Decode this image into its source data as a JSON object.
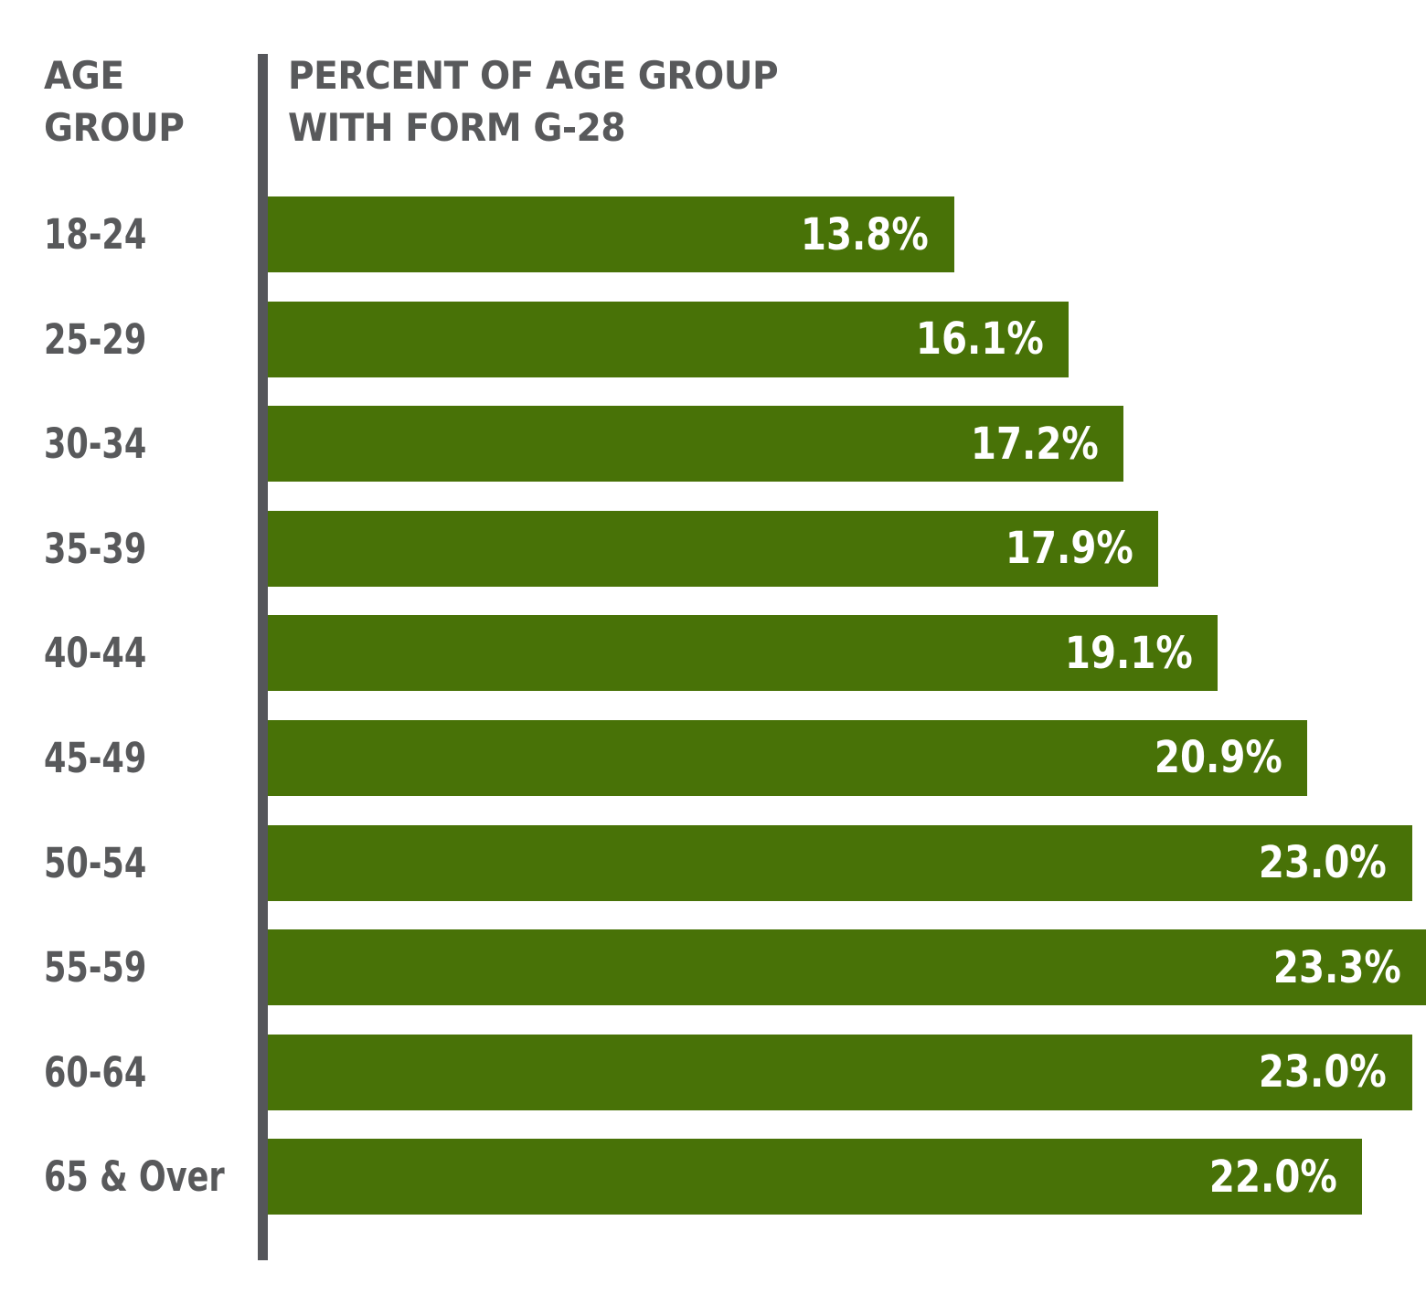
{
  "header": {
    "left_title": "AGE\nGROUP",
    "right_title": "PERCENT OF AGE GROUP\nWITH FORM G-28"
  },
  "colors": {
    "bar_green": "#487207",
    "axis_gray": "#55565A",
    "text_gray": "#58595B",
    "value_text": "#FFFFFF"
  },
  "chart_data": {
    "type": "bar",
    "orientation": "horizontal",
    "title": "PERCENT OF AGE GROUP WITH FORM G-28",
    "category_axis_label": "AGE GROUP",
    "categories": [
      "18-24",
      "25-29",
      "30-34",
      "35-39",
      "40-44",
      "45-49",
      "50-54",
      "55-59",
      "60-64",
      "65 & Over"
    ],
    "values": [
      13.8,
      16.1,
      17.2,
      17.9,
      19.1,
      20.9,
      23.0,
      23.3,
      23.0,
      22.0
    ],
    "xlim": [
      0,
      23.3
    ],
    "grid": false,
    "legend": false,
    "value_labels_position": "inside-end",
    "rows": [
      {
        "label": "18-24",
        "value": 13.8,
        "display": "13.8%"
      },
      {
        "label": "25-29",
        "value": 16.1,
        "display": "16.1%"
      },
      {
        "label": "30-34",
        "value": 17.2,
        "display": "17.2%"
      },
      {
        "label": "35-39",
        "value": 17.9,
        "display": "17.9%"
      },
      {
        "label": "40-44",
        "value": 19.1,
        "display": "19.1%"
      },
      {
        "label": "45-49",
        "value": 20.9,
        "display": "20.9%"
      },
      {
        "label": "50-54",
        "value": 23.0,
        "display": "23.0%"
      },
      {
        "label": "55-59",
        "value": 23.3,
        "display": "23.3%"
      },
      {
        "label": "60-64",
        "value": 23.0,
        "display": "23.0%"
      },
      {
        "label": "65 & Over",
        "value": 22.0,
        "display": "22.0%"
      }
    ]
  }
}
